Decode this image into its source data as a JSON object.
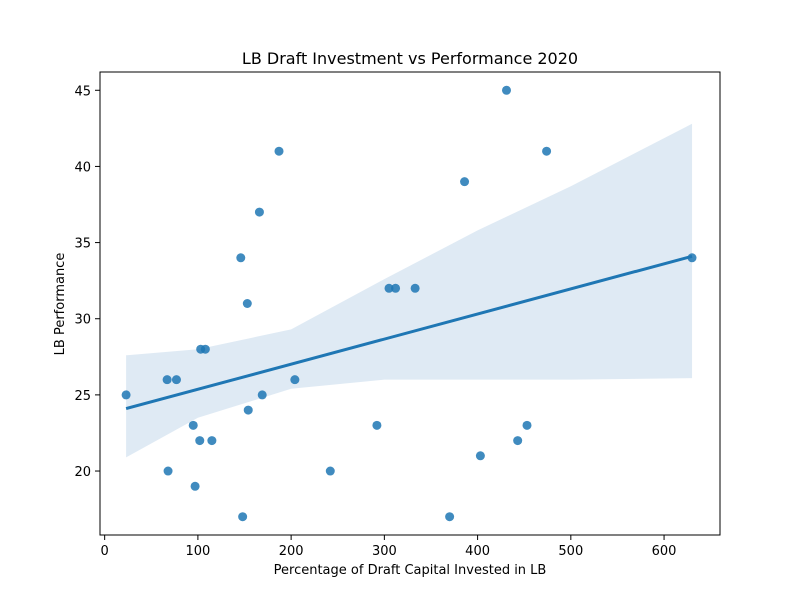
{
  "chart_data": {
    "type": "scatter",
    "title": "LB Draft Investment vs Performance 2020",
    "xlabel": "Percentage of Draft Capital Invested in LB",
    "ylabel": "LB Performance",
    "xlim": [
      -5,
      660
    ],
    "ylim": [
      15.8,
      46.2
    ],
    "xticks": [
      0,
      100,
      200,
      300,
      400,
      500,
      600
    ],
    "yticks": [
      20,
      25,
      30,
      35,
      40,
      45
    ],
    "grid": false,
    "points": [
      {
        "x": 23,
        "y": 25
      },
      {
        "x": 67,
        "y": 26
      },
      {
        "x": 77,
        "y": 26
      },
      {
        "x": 68,
        "y": 20
      },
      {
        "x": 95,
        "y": 23
      },
      {
        "x": 97,
        "y": 19
      },
      {
        "x": 102,
        "y": 22
      },
      {
        "x": 103,
        "y": 28
      },
      {
        "x": 108,
        "y": 28
      },
      {
        "x": 115,
        "y": 22
      },
      {
        "x": 146,
        "y": 34
      },
      {
        "x": 148,
        "y": 17
      },
      {
        "x": 153,
        "y": 31
      },
      {
        "x": 154,
        "y": 24
      },
      {
        "x": 166,
        "y": 37
      },
      {
        "x": 169,
        "y": 25
      },
      {
        "x": 187,
        "y": 41
      },
      {
        "x": 204,
        "y": 26
      },
      {
        "x": 242,
        "y": 20
      },
      {
        "x": 292,
        "y": 23
      },
      {
        "x": 305,
        "y": 32
      },
      {
        "x": 312,
        "y": 32
      },
      {
        "x": 333,
        "y": 32
      },
      {
        "x": 370,
        "y": 17
      },
      {
        "x": 386,
        "y": 39
      },
      {
        "x": 403,
        "y": 21
      },
      {
        "x": 431,
        "y": 45
      },
      {
        "x": 443,
        "y": 22
      },
      {
        "x": 453,
        "y": 23
      },
      {
        "x": 474,
        "y": 41
      },
      {
        "x": 630,
        "y": 34
      }
    ],
    "regression_line": {
      "x": [
        23,
        630
      ],
      "y": [
        24.1,
        34.1
      ]
    },
    "confidence_band": {
      "x": [
        23,
        100,
        200,
        300,
        400,
        500,
        630
      ],
      "upper": [
        27.6,
        28.0,
        29.3,
        32.6,
        35.8,
        38.7,
        42.8
      ],
      "lower": [
        20.9,
        23.5,
        25.4,
        26.0,
        26.0,
        26.0,
        26.1
      ]
    },
    "colors": {
      "points": "#1f77b4",
      "line": "#1f77b4",
      "band": "#dce8f3"
    }
  }
}
